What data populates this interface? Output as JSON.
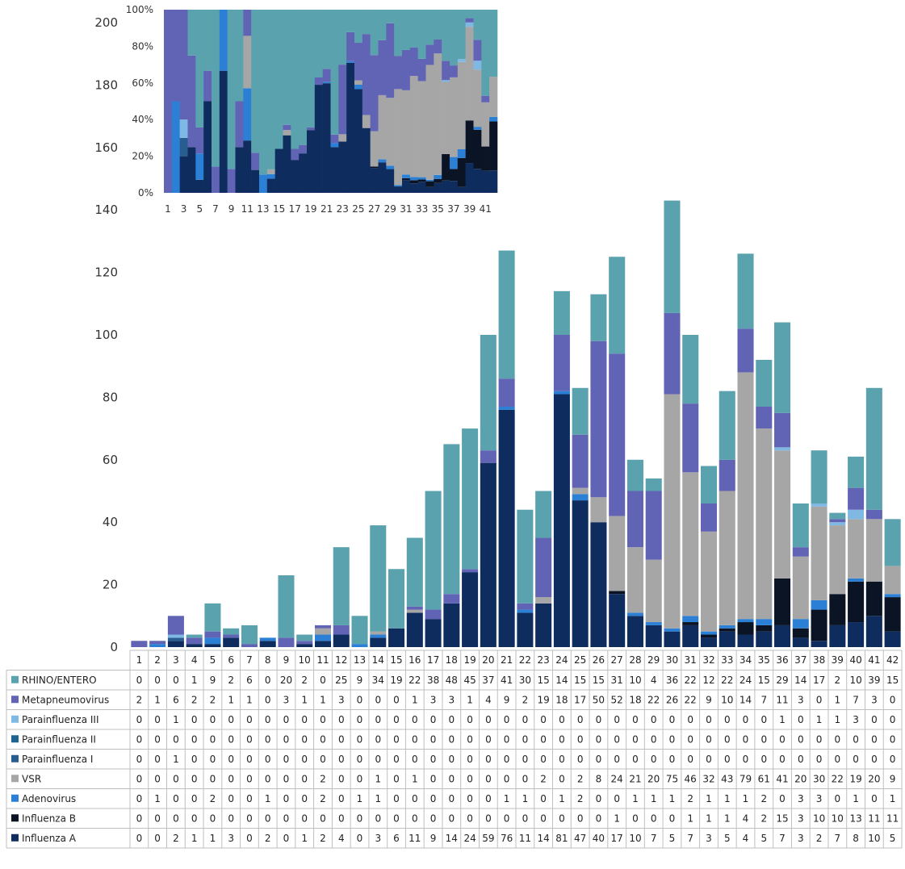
{
  "chart_data": [
    {
      "type": "bar",
      "stacked": true,
      "title": "",
      "xlabel": "",
      "ylabel": "",
      "ylim": [
        0,
        200
      ],
      "yticks": [
        0,
        20,
        40,
        60,
        80,
        100,
        120,
        140,
        160,
        180,
        200
      ],
      "categories": [
        "1",
        "2",
        "3",
        "4",
        "5",
        "6",
        "7",
        "8",
        "9",
        "10",
        "11",
        "12",
        "13",
        "14",
        "15",
        "16",
        "17",
        "18",
        "19",
        "20",
        "21",
        "22",
        "23",
        "24",
        "25",
        "26",
        "27",
        "28",
        "29",
        "30",
        "31",
        "32",
        "33",
        "34",
        "35",
        "36",
        "37",
        "38",
        "39",
        "40",
        "41",
        "42"
      ],
      "data_table": true,
      "series": [
        {
          "name": "Influenza A",
          "color": "#0e2c5e",
          "values": [
            0,
            0,
            2,
            1,
            1,
            3,
            0,
            2,
            0,
            1,
            2,
            4,
            0,
            3,
            6,
            11,
            9,
            14,
            24,
            59,
            76,
            11,
            14,
            81,
            47,
            40,
            17,
            10,
            7,
            5,
            7,
            3,
            5,
            4,
            5,
            7,
            3,
            2,
            7,
            8,
            10,
            5
          ]
        },
        {
          "name": "Influenza B",
          "color": "#0a1424",
          "values": [
            0,
            0,
            0,
            0,
            0,
            0,
            0,
            0,
            0,
            0,
            0,
            0,
            0,
            0,
            0,
            0,
            0,
            0,
            0,
            0,
            0,
            0,
            0,
            0,
            0,
            0,
            1,
            0,
            0,
            0,
            1,
            1,
            1,
            4,
            2,
            15,
            3,
            10,
            10,
            13,
            11,
            11
          ]
        },
        {
          "name": "Adenovirus",
          "color": "#2b7fd4",
          "values": [
            0,
            1,
            0,
            0,
            2,
            0,
            0,
            1,
            0,
            0,
            2,
            0,
            1,
            1,
            0,
            0,
            0,
            0,
            0,
            0,
            1,
            1,
            0,
            1,
            2,
            0,
            0,
            1,
            1,
            1,
            2,
            1,
            1,
            1,
            2,
            0,
            3,
            3,
            0,
            1,
            0,
            1
          ]
        },
        {
          "name": "VSR",
          "color": "#a6a6a6",
          "values": [
            0,
            0,
            0,
            0,
            0,
            0,
            0,
            0,
            0,
            0,
            2,
            0,
            0,
            1,
            0,
            1,
            0,
            0,
            0,
            0,
            0,
            0,
            2,
            0,
            2,
            8,
            24,
            21,
            20,
            75,
            46,
            32,
            43,
            79,
            61,
            41,
            20,
            30,
            22,
            19,
            20,
            9
          ]
        },
        {
          "name": "Parainfluenza I",
          "color": "#2a5d8f",
          "values": [
            0,
            0,
            1,
            0,
            0,
            0,
            0,
            0,
            0,
            0,
            0,
            0,
            0,
            0,
            0,
            0,
            0,
            0,
            0,
            0,
            0,
            0,
            0,
            0,
            0,
            0,
            0,
            0,
            0,
            0,
            0,
            0,
            0,
            0,
            0,
            0,
            0,
            0,
            0,
            0,
            0,
            0
          ]
        },
        {
          "name": "Parainfluenza II",
          "color": "#1f6391",
          "values": [
            0,
            0,
            0,
            0,
            0,
            0,
            0,
            0,
            0,
            0,
            0,
            0,
            0,
            0,
            0,
            0,
            0,
            0,
            0,
            0,
            0,
            0,
            0,
            0,
            0,
            0,
            0,
            0,
            0,
            0,
            0,
            0,
            0,
            0,
            0,
            0,
            0,
            0,
            0,
            0,
            0,
            0
          ]
        },
        {
          "name": "Parainfluenza III",
          "color": "#7fb8e3",
          "values": [
            0,
            0,
            1,
            0,
            0,
            0,
            0,
            0,
            0,
            0,
            0,
            0,
            0,
            0,
            0,
            0,
            0,
            0,
            0,
            0,
            0,
            0,
            0,
            0,
            0,
            0,
            0,
            0,
            0,
            0,
            0,
            0,
            0,
            0,
            0,
            1,
            0,
            1,
            1,
            3,
            0,
            0
          ]
        },
        {
          "name": "Metapneumovirus",
          "color": "#6163b5",
          "values": [
            2,
            1,
            6,
            2,
            2,
            1,
            1,
            0,
            3,
            1,
            1,
            3,
            0,
            0,
            0,
            1,
            3,
            3,
            1,
            4,
            9,
            2,
            19,
            18,
            17,
            50,
            52,
            18,
            22,
            26,
            22,
            9,
            10,
            14,
            7,
            11,
            3,
            0,
            1,
            7,
            3,
            0
          ]
        },
        {
          "name": "RHINO/ENTERO",
          "color": "#5aa2ad",
          "values": [
            0,
            0,
            0,
            1,
            9,
            2,
            6,
            0,
            20,
            2,
            0,
            25,
            9,
            34,
            19,
            22,
            38,
            48,
            45,
            37,
            41,
            30,
            15,
            14,
            15,
            15,
            31,
            10,
            4,
            36,
            22,
            12,
            22,
            24,
            15,
            29,
            14,
            17,
            2,
            10,
            39,
            15
          ]
        }
      ],
      "table_row_order": [
        "RHINO/ENTERO",
        "Metapneumovirus",
        "Parainfluenza III",
        "Parainfluenza II",
        "Parainfluenza I",
        "VSR",
        "Adenovirus",
        "Influenza B",
        "Influenza A"
      ]
    },
    {
      "type": "bar",
      "stacked": true,
      "normalized": true,
      "title": "",
      "ylim": [
        0,
        100
      ],
      "yticks": [
        "0%",
        "20%",
        "40%",
        "60%",
        "80%",
        "100%"
      ],
      "xticks": [
        "1",
        "3",
        "5",
        "7",
        "9",
        "11",
        "13",
        "15",
        "17",
        "19",
        "21",
        "23",
        "25",
        "27",
        "29",
        "31",
        "33",
        "35",
        "37",
        "39",
        "41"
      ],
      "note": "100% stacked inset of the same 9 series over weeks 1-42"
    }
  ]
}
